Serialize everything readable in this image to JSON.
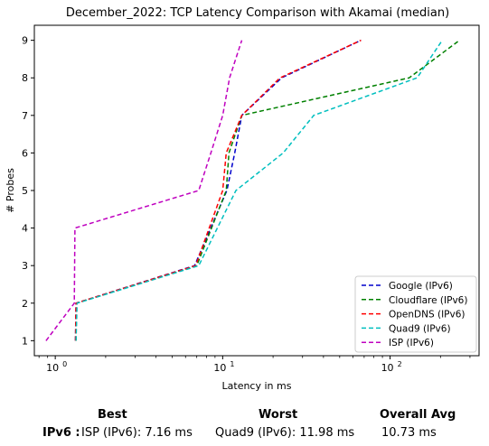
{
  "chart_data": {
    "type": "line",
    "title": "December_2022: TCP Latency Comparison with Akamai (median)",
    "xlabel": "Latency in ms",
    "ylabel": "# Probes",
    "xscale": "log",
    "xlim": [
      0.75,
      340
    ],
    "ylim": [
      0.6,
      9.4
    ],
    "x_ticks": [
      {
        "value": 1,
        "base": "10",
        "exp": "0"
      },
      {
        "value": 10,
        "base": "10",
        "exp": "1"
      },
      {
        "value": 100,
        "base": "10",
        "exp": "2"
      }
    ],
    "y_ticks": [
      1,
      2,
      3,
      4,
      5,
      6,
      7,
      8,
      9
    ],
    "grid": false,
    "legend_position": "lower-right",
    "series": [
      {
        "name": "Google (IPv6)",
        "color": "#0000cc",
        "dash": "dashed",
        "points": [
          [
            1.32,
            1
          ],
          [
            1.33,
            2
          ],
          [
            6.8,
            3
          ],
          [
            10.6,
            5
          ],
          [
            11.8,
            6
          ],
          [
            13,
            7
          ],
          [
            22.5,
            8
          ],
          [
            67,
            9
          ]
        ]
      },
      {
        "name": "Cloudflare (IPv6)",
        "color": "#008000",
        "dash": "dashed",
        "points": [
          [
            1.33,
            1
          ],
          [
            1.34,
            2
          ],
          [
            7.0,
            3
          ],
          [
            10.5,
            5
          ],
          [
            10.9,
            6
          ],
          [
            13,
            7
          ],
          [
            130,
            8
          ],
          [
            260,
            9
          ]
        ]
      },
      {
        "name": "OpenDNS (IPv6)",
        "color": "#ff0000",
        "dash": "dashed",
        "points": [
          [
            1.32,
            1
          ],
          [
            1.33,
            2
          ],
          [
            6.9,
            3
          ],
          [
            10.0,
            5
          ],
          [
            10.5,
            6
          ],
          [
            13,
            7
          ],
          [
            22,
            8
          ],
          [
            67,
            9
          ]
        ]
      },
      {
        "name": "Quad9 (IPv6)",
        "color": "#00bfbf",
        "dash": "dashed",
        "points": [
          [
            1.33,
            1
          ],
          [
            1.35,
            2
          ],
          [
            7.2,
            3
          ],
          [
            12,
            5
          ],
          [
            23,
            6
          ],
          [
            35,
            7
          ],
          [
            145,
            8
          ],
          [
            205,
            9
          ]
        ]
      },
      {
        "name": "ISP (IPv6)",
        "color": "#bf00bf",
        "dash": "dashed",
        "points": [
          [
            0.88,
            1
          ],
          [
            1.3,
            2
          ],
          [
            1.31,
            4
          ],
          [
            7.2,
            5
          ],
          [
            8.5,
            6
          ],
          [
            10,
            7
          ],
          [
            11,
            8
          ],
          [
            13,
            9
          ]
        ]
      }
    ]
  },
  "summary": {
    "best_label": "Best",
    "worst_label": "Worst",
    "avg_label": "Overall Avg",
    "row_label": "IPv6 :",
    "best_value": "ISP (IPv6): 7.16 ms",
    "worst_value": "Quad9 (IPv6): 11.98 ms",
    "avg_value": "10.73 ms"
  }
}
